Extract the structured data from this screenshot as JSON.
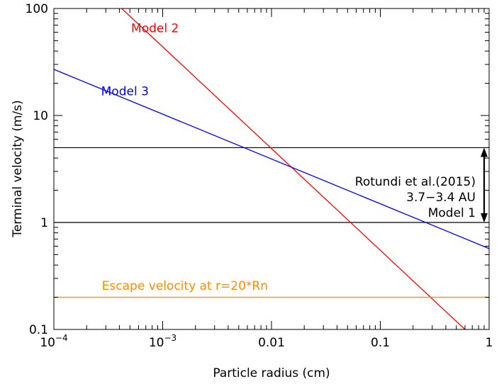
{
  "chart_data": {
    "type": "line",
    "xlabel": "Particle radius (cm)",
    "ylabel": "Terminal velocity (m/s)",
    "x_scale": "log",
    "y_scale": "log",
    "xlim": [
      0.0001,
      1
    ],
    "ylim": [
      0.1,
      100
    ],
    "x_ticks": [
      {
        "value": 0.0001,
        "label": "10",
        "exp": "-4"
      },
      {
        "value": 0.001,
        "label": "10",
        "exp": "-3"
      },
      {
        "value": 0.01,
        "label": "0.01",
        "exp": ""
      },
      {
        "value": 0.1,
        "label": "0.1",
        "exp": ""
      },
      {
        "value": 1,
        "label": "1",
        "exp": ""
      }
    ],
    "y_ticks": [
      {
        "value": 0.1,
        "label": "0.1"
      },
      {
        "value": 1,
        "label": "1"
      },
      {
        "value": 10,
        "label": "10"
      },
      {
        "value": 100,
        "label": "100"
      }
    ],
    "grid": false,
    "series": [
      {
        "name": "Model 2",
        "color": "#ff0000",
        "x": [
          0.00042,
          0.6
        ],
        "y": [
          100,
          0.1
        ]
      },
      {
        "name": "Model 3",
        "color": "#0000ff",
        "x": [
          0.0001,
          1
        ],
        "y": [
          27,
          0.57
        ]
      },
      {
        "name": "Escape velocity at r=20*Rn",
        "color": "#ff8c00",
        "x": [
          0.0001,
          1
        ],
        "y": [
          0.2,
          0.2
        ]
      }
    ],
    "horizontal_lines": [
      {
        "y": 5,
        "color": "#000000"
      },
      {
        "y": 1,
        "color": "#000000"
      }
    ],
    "annotation": {
      "lines": [
        "Rotundi et al.(2015)",
        "3.7−3.4 AU",
        "Model 1"
      ],
      "arrow_x": 0.9,
      "arrow_y": [
        1,
        5
      ]
    }
  }
}
